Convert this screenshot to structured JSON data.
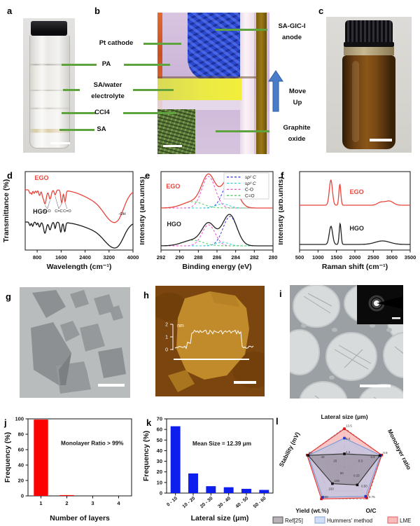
{
  "panel_letters": {
    "a": "a",
    "b": "b",
    "c": "c",
    "d": "d",
    "e": "e",
    "f": "f",
    "g": "g",
    "h": "h",
    "i": "i",
    "j": "j",
    "k": "k",
    "l": "l"
  },
  "row1": {
    "pt_cathode": "Pt cathode",
    "pa": "PA",
    "sa_water_1": "SA/water",
    "sa_water_2": "electrolyte",
    "ccl4": "CCl4",
    "sa": "SA",
    "anode_1": "SA-GIC-I",
    "anode_2": "anode",
    "move_1": "Move",
    "move_2": "Up",
    "graphite_1": "Graphite",
    "graphite_2": "oxide",
    "line_color": "#5ea33e",
    "arrow_color": "#4a7dc9"
  },
  "panel_h_overlay": {
    "unit": "nm",
    "ticks": [
      "2",
      "1",
      "0"
    ]
  },
  "chart_data": {
    "d": {
      "type": "line",
      "xlabel": "Wavelength (cm⁻¹)",
      "ylabel": "Transmittance (%)",
      "xlim": [
        400,
        4000
      ],
      "xticks": [
        800,
        1600,
        2400,
        3200,
        4000
      ],
      "sign": 1,
      "series": [
        {
          "name": "EGO",
          "color": "#e8453c",
          "base": 26,
          "label_x": 950,
          "label_y": 12,
          "peaks": [
            [
              560,
              25,
              5
            ],
            [
              620,
              20,
              6
            ],
            [
              700,
              25,
              5
            ],
            [
              780,
              20,
              4
            ],
            [
              880,
              30,
              8
            ],
            [
              980,
              25,
              6
            ],
            [
              1060,
              45,
              20
            ],
            [
              1230,
              40,
              13
            ],
            [
              1400,
              30,
              7
            ],
            [
              1620,
              30,
              18
            ],
            [
              1730,
              28,
              16
            ],
            [
              2900,
              500,
              16
            ],
            [
              3320,
              280,
              30
            ],
            [
              3560,
              180,
              12
            ]
          ]
        },
        {
          "name": "HGO",
          "color": "#1a1a1a",
          "base": 72,
          "label_x": 900,
          "label_y": 60,
          "peaks": [
            [
              560,
              25,
              5
            ],
            [
              650,
              25,
              6
            ],
            [
              780,
              20,
              4
            ],
            [
              880,
              30,
              7
            ],
            [
              1060,
              45,
              16
            ],
            [
              1230,
              40,
              11
            ],
            [
              1400,
              25,
              9
            ],
            [
              1590,
              30,
              14
            ],
            [
              1720,
              28,
              13
            ],
            [
              2900,
              500,
              12
            ],
            [
              3320,
              280,
              24
            ],
            [
              3560,
              180,
              10
            ]
          ]
        }
      ],
      "annotations": [
        {
          "text": "C-O",
          "x": 1140,
          "y": 58,
          "targets": [
            [
              1060,
              48
            ],
            [
              1230,
              41
            ]
          ]
        },
        {
          "text": "C=C",
          "x": 1520,
          "y": 58,
          "targets": [
            [
              1400,
              35
            ],
            [
              1620,
              46
            ]
          ]
        },
        {
          "text": "C=O",
          "x": 1800,
          "y": 58,
          "targets": [
            [
              1730,
              44
            ]
          ]
        },
        {
          "text": "-OH",
          "x": 3640,
          "y": 62,
          "targets": []
        }
      ]
    },
    "e": {
      "type": "line",
      "xlabel": "Binding energy (eV)",
      "ylabel": "Intensity (arb.units)",
      "xlim": [
        292,
        280
      ],
      "xticks": [
        292,
        290,
        288,
        286,
        284,
        282,
        280
      ],
      "legend": [
        {
          "label": "sp² C",
          "color": "#3b3bee"
        },
        {
          "label": "sp³ C",
          "color": "#22d6d6"
        },
        {
          "label": "C-O",
          "color": "#f24ad2"
        },
        {
          "label": "C=O",
          "color": "#4ecb5e"
        }
      ],
      "series": [
        {
          "name": "EGO",
          "color": "#e8453c",
          "base": 52,
          "label_x": 290.7,
          "label_y": 24,
          "components": [
            {
              "c": 284.6,
              "s": 0.75,
              "a": 40,
              "color": "#3b3bee"
            },
            {
              "c": 285.4,
              "s": 0.7,
              "a": 6,
              "color": "#22d6d6"
            },
            {
              "c": 286.9,
              "s": 0.72,
              "a": 45,
              "color": "#f24ad2"
            },
            {
              "c": 288.6,
              "s": 1.1,
              "a": 9,
              "color": "#4ecb5e"
            }
          ]
        },
        {
          "name": "HGO",
          "color": "#222222",
          "base": 106,
          "label_x": 290.6,
          "label_y": 78,
          "components": [
            {
              "c": 284.6,
              "s": 0.75,
              "a": 42,
              "color": "#3b3bee"
            },
            {
              "c": 285.4,
              "s": 0.7,
              "a": 5,
              "color": "#22d6d6"
            },
            {
              "c": 286.9,
              "s": 0.7,
              "a": 30,
              "color": "#f24ad2"
            },
            {
              "c": 288.6,
              "s": 1.1,
              "a": 8,
              "color": "#4ecb5e"
            }
          ]
        }
      ]
    },
    "f": {
      "type": "line",
      "xlabel": "Raman shift (cm⁻¹)",
      "ylabel": "Intensity (arb.units)",
      "xlim": [
        500,
        3500
      ],
      "xticks": [
        500,
        1000,
        1500,
        2000,
        2500,
        3000,
        3500
      ],
      "sign": -1,
      "series": [
        {
          "name": "EGO",
          "color": "#e8453c",
          "base": 48,
          "label_x": 2050,
          "label_y": 32,
          "peaks": [
            [
              1348,
              42,
              36
            ],
            [
              1592,
              26,
              30
            ],
            [
              2700,
              90,
              4
            ],
            [
              2930,
              110,
              6
            ]
          ]
        },
        {
          "name": "HGO",
          "color": "#222222",
          "base": 104,
          "label_x": 2050,
          "label_y": 84,
          "peaks": [
            [
              1350,
              45,
              26
            ],
            [
              1600,
              25,
              30
            ],
            [
              2750,
              200,
              5
            ]
          ]
        }
      ]
    },
    "j": {
      "type": "bar",
      "ylabel": "Frequency (%)",
      "xlabel": "Number of layers",
      "categories": [
        "1",
        "2",
        "3",
        "4"
      ],
      "values": [
        99,
        1,
        0,
        0
      ],
      "ylim": [
        0,
        100
      ],
      "yticks": [
        0,
        20,
        40,
        60,
        80,
        100
      ],
      "bar_color": "#fe0000",
      "annotation": "Monolayer Ratio > 99%",
      "ann_fx": 0.62,
      "ann_fy": 0.34
    },
    "k": {
      "type": "bar",
      "ylabel": "Frequency (%)",
      "xlabel": "Lateral size (μm)",
      "categories": [
        "0 - 10",
        "10 - 20",
        "20 - 30",
        "30 - 40",
        "40 - 50",
        "50 - 60"
      ],
      "values": [
        63,
        18.5,
        6.5,
        5.5,
        4,
        3
      ],
      "ylim": [
        0,
        70
      ],
      "yticks": [
        0,
        10,
        20,
        30,
        40,
        50,
        60,
        70
      ],
      "bar_color": "#0d1eee",
      "annotation": "Mean Size = 12.39 μm",
      "ann_fx": 0.52,
      "ann_fy": 0.36,
      "rotate_labels": true
    },
    "l": {
      "type": "radar",
      "axes": [
        {
          "label": "Lateral size (μm)",
          "ticks": [
            [
              0.333,
              "4.5"
            ],
            [
              0.667,
              "9.0"
            ],
            [
              1,
              "13.5"
            ]
          ]
        },
        {
          "label": "Monolayer ratio",
          "ticks": [
            [
              0.333,
              "0.3"
            ],
            [
              0.667,
              "0.6"
            ],
            [
              1,
              "0.9"
            ]
          ]
        },
        {
          "label": "O/C",
          "ticks": [
            [
              0.333,
              "0.25"
            ],
            [
              0.667,
              "0.50"
            ],
            [
              1,
              "0.75"
            ]
          ]
        },
        {
          "label": "Yield (wt.%)",
          "ticks": [
            [
              0.25,
              "50"
            ],
            [
              0.5,
              "100"
            ],
            [
              0.75,
              "150"
            ],
            [
              1,
              "200"
            ]
          ]
        },
        {
          "label": "Stability (mV)",
          "ticks": [
            [
              0.333,
              "20"
            ],
            [
              0.667,
              "40"
            ],
            [
              1,
              "60"
            ]
          ]
        }
      ],
      "series": [
        {
          "name": "LME",
          "fractions": [
            0.98,
            1.0,
            0.97,
            1.0,
            1.0
          ],
          "fill": "rgba(246,150,150,0.55)",
          "stroke": "#e03c3c",
          "marker": "#dd1111"
        },
        {
          "name": "Hummers' method",
          "fractions": [
            0.74,
            0.97,
            0.92,
            0.95,
            0.97
          ],
          "fill": "rgba(168,196,238,0.55)",
          "stroke": "#7d9fd8",
          "marker": "#2233cc"
        },
        {
          "name": "Ref[25]",
          "fractions": [
            0.34,
            0.95,
            0.56,
            0.52,
            0.97
          ],
          "fill": "rgba(130,120,130,0.5)",
          "stroke": "#3a3a3a",
          "marker": "#111111"
        }
      ],
      "legend": [
        {
          "label": "Ref[25]",
          "fill": "#b9b2b9",
          "stroke": "#555555"
        },
        {
          "label": "Hummers' method",
          "fill": "#cfdff5",
          "stroke": "#8aa6d6"
        },
        {
          "label": "LME",
          "fill": "#f9bcbc",
          "stroke": "#e06060"
        }
      ]
    }
  }
}
